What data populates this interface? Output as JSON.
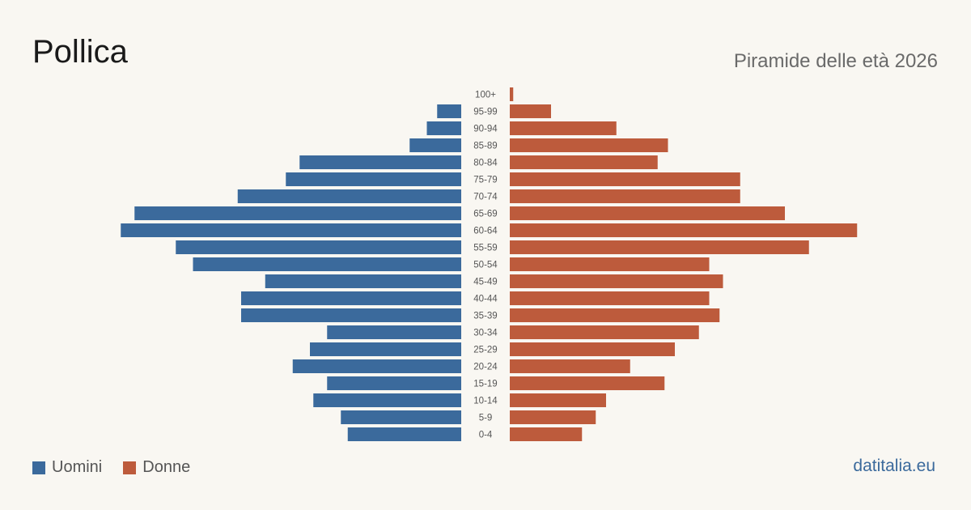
{
  "title": "Pollica",
  "subtitle": "Piramide delle età 2026",
  "brand": "datitalia.eu",
  "colors": {
    "male": "#3b6a9c",
    "female": "#bd5b3c",
    "background": "#f9f7f2"
  },
  "legend": {
    "male_label": "Uomini",
    "female_label": "Donne"
  },
  "chart_data": {
    "type": "bar",
    "orientation": "horizontal",
    "categories": [
      "100+",
      "95-99",
      "90-94",
      "85-89",
      "80-84",
      "75-79",
      "70-74",
      "65-69",
      "60-64",
      "55-59",
      "50-54",
      "45-49",
      "40-44",
      "35-39",
      "30-34",
      "25-29",
      "20-24",
      "15-19",
      "10-14",
      "5-9",
      "0-4"
    ],
    "series": [
      {
        "name": "Uomini",
        "values": [
          0,
          7,
          10,
          15,
          47,
          51,
          65,
          95,
          99,
          83,
          78,
          57,
          64,
          64,
          39,
          44,
          49,
          39,
          43,
          35,
          33
        ]
      },
      {
        "name": "Donne",
        "values": [
          1,
          12,
          31,
          46,
          43,
          67,
          67,
          80,
          101,
          87,
          58,
          62,
          58,
          61,
          55,
          48,
          35,
          45,
          28,
          25,
          21
        ]
      }
    ],
    "grid": false,
    "legend_position": "bottom-left"
  }
}
